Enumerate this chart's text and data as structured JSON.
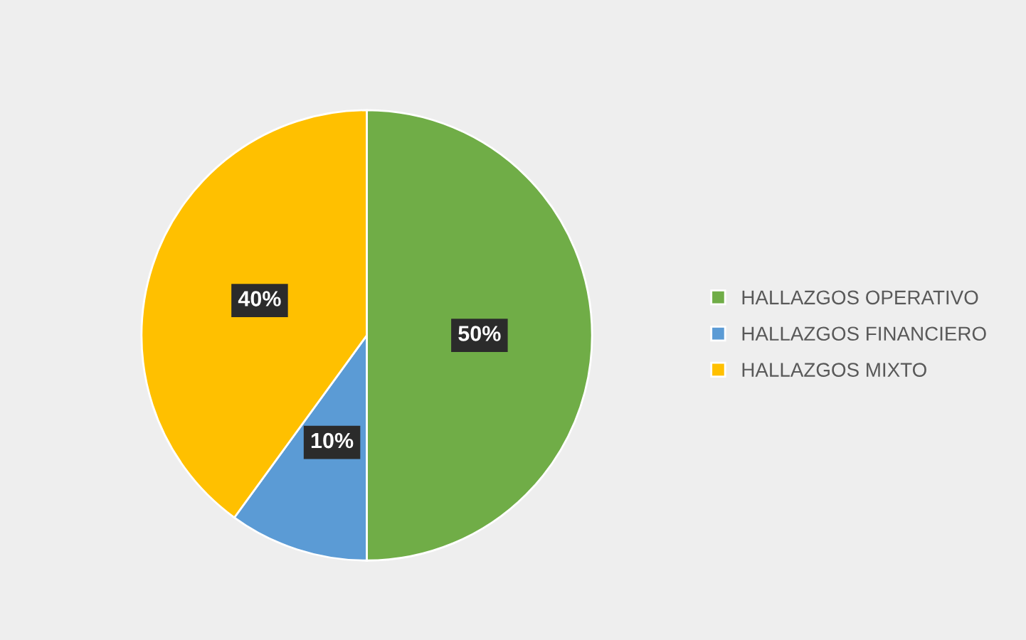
{
  "chart_data": {
    "type": "pie",
    "categories": [
      "HALLAZGOS OPERATIVO",
      "HALLAZGOS FINANCIERO",
      "HALLAZGOS MIXTO"
    ],
    "values": [
      50,
      10,
      40
    ],
    "colors": [
      "#70ad47",
      "#5b9bd5",
      "#ffc000"
    ],
    "value_labels": [
      "50%",
      "10%",
      "40%"
    ],
    "legend": "right"
  }
}
